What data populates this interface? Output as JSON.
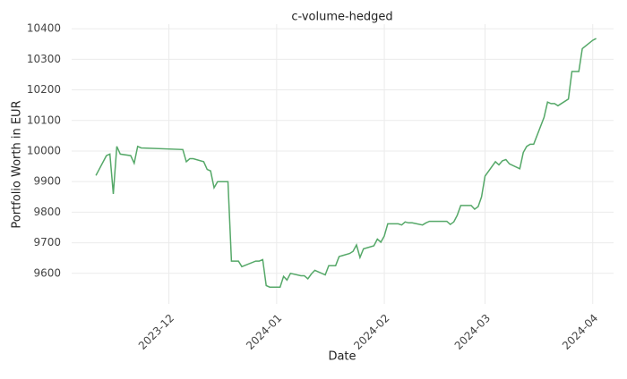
{
  "chart_data": {
    "type": "line",
    "title": "c-volume-hedged",
    "x_label": "Date",
    "y_label": "Portfolio Worth in EUR",
    "x": [
      "2023-11-10",
      "2023-11-13",
      "2023-11-14",
      "2023-11-15",
      "2023-11-16",
      "2023-11-17",
      "2023-11-20",
      "2023-11-21",
      "2023-11-22",
      "2023-11-23",
      "2023-12-05",
      "2023-12-06",
      "2023-12-07",
      "2023-12-08",
      "2023-12-11",
      "2023-12-12",
      "2023-12-13",
      "2023-12-14",
      "2023-12-15",
      "2023-12-18",
      "2023-12-19",
      "2023-12-20",
      "2023-12-21",
      "2023-12-22",
      "2023-12-26",
      "2023-12-27",
      "2023-12-28",
      "2023-12-29",
      "2023-12-30",
      "2024-01-02",
      "2024-01-03",
      "2024-01-04",
      "2024-01-05",
      "2024-01-08",
      "2024-01-09",
      "2024-01-10",
      "2024-01-11",
      "2024-01-12",
      "2024-01-15",
      "2024-01-16",
      "2024-01-17",
      "2024-01-18",
      "2024-01-19",
      "2024-01-22",
      "2024-01-23",
      "2024-01-24",
      "2024-01-25",
      "2024-01-26",
      "2024-01-29",
      "2024-01-30",
      "2024-01-31",
      "2024-02-01",
      "2024-02-02",
      "2024-02-05",
      "2024-02-06",
      "2024-02-07",
      "2024-02-08",
      "2024-02-09",
      "2024-02-12",
      "2024-02-13",
      "2024-02-14",
      "2024-02-15",
      "2024-02-16",
      "2024-02-19",
      "2024-02-20",
      "2024-02-21",
      "2024-02-22",
      "2024-02-23",
      "2024-02-26",
      "2024-02-27",
      "2024-02-28",
      "2024-02-29",
      "2024-03-01",
      "2024-03-04",
      "2024-03-05",
      "2024-03-06",
      "2024-03-07",
      "2024-03-08",
      "2024-03-11",
      "2024-03-12",
      "2024-03-13",
      "2024-03-14",
      "2024-03-15",
      "2024-03-18",
      "2024-03-19",
      "2024-03-20",
      "2024-03-21",
      "2024-03-22",
      "2024-03-25",
      "2024-03-26",
      "2024-03-27",
      "2024-03-28",
      "2024-03-29",
      "2024-04-01",
      "2024-04-02"
    ],
    "series": [
      {
        "name": "c-volume-hedged",
        "color": "#55a868",
        "values": [
          9920,
          9985,
          9990,
          9860,
          10015,
          9990,
          9985,
          9960,
          10015,
          10010,
          10005,
          9965,
          9975,
          9975,
          9965,
          9940,
          9935,
          9880,
          9900,
          9900,
          9640,
          9640,
          9640,
          9622,
          9640,
          9640,
          9645,
          9560,
          9555,
          9555,
          9590,
          9578,
          9600,
          9592,
          9592,
          9582,
          9598,
          9610,
          9595,
          9625,
          9625,
          9625,
          9655,
          9665,
          9672,
          9693,
          9652,
          9680,
          9690,
          9712,
          9702,
          9722,
          9762,
          9762,
          9758,
          9768,
          9765,
          9765,
          9758,
          9765,
          9770,
          9770,
          9770,
          9770,
          9760,
          9768,
          9790,
          9822,
          9822,
          9810,
          9818,
          9850,
          9918,
          9965,
          9955,
          9968,
          9972,
          9958,
          9942,
          9995,
          10015,
          10022,
          10022,
          10110,
          10160,
          10155,
          10155,
          10148,
          10170,
          10260,
          10260,
          10260,
          10335,
          10362,
          10368
        ]
      }
    ],
    "xlim": [
      "2023-11-03",
      "2024-04-07"
    ],
    "xticks": [
      {
        "value": "2023-12-01",
        "label": "2023-12"
      },
      {
        "value": "2024-01-01",
        "label": "2024-01"
      },
      {
        "value": "2024-02-01",
        "label": "2024-02"
      },
      {
        "value": "2024-03-01",
        "label": "2024-03"
      },
      {
        "value": "2024-04-01",
        "label": "2024-04"
      }
    ],
    "ylim": [
      9500,
      10415
    ],
    "yticks": [
      9600,
      9700,
      9800,
      9900,
      10000,
      10100,
      10200,
      10300,
      10400
    ],
    "grid": true
  }
}
